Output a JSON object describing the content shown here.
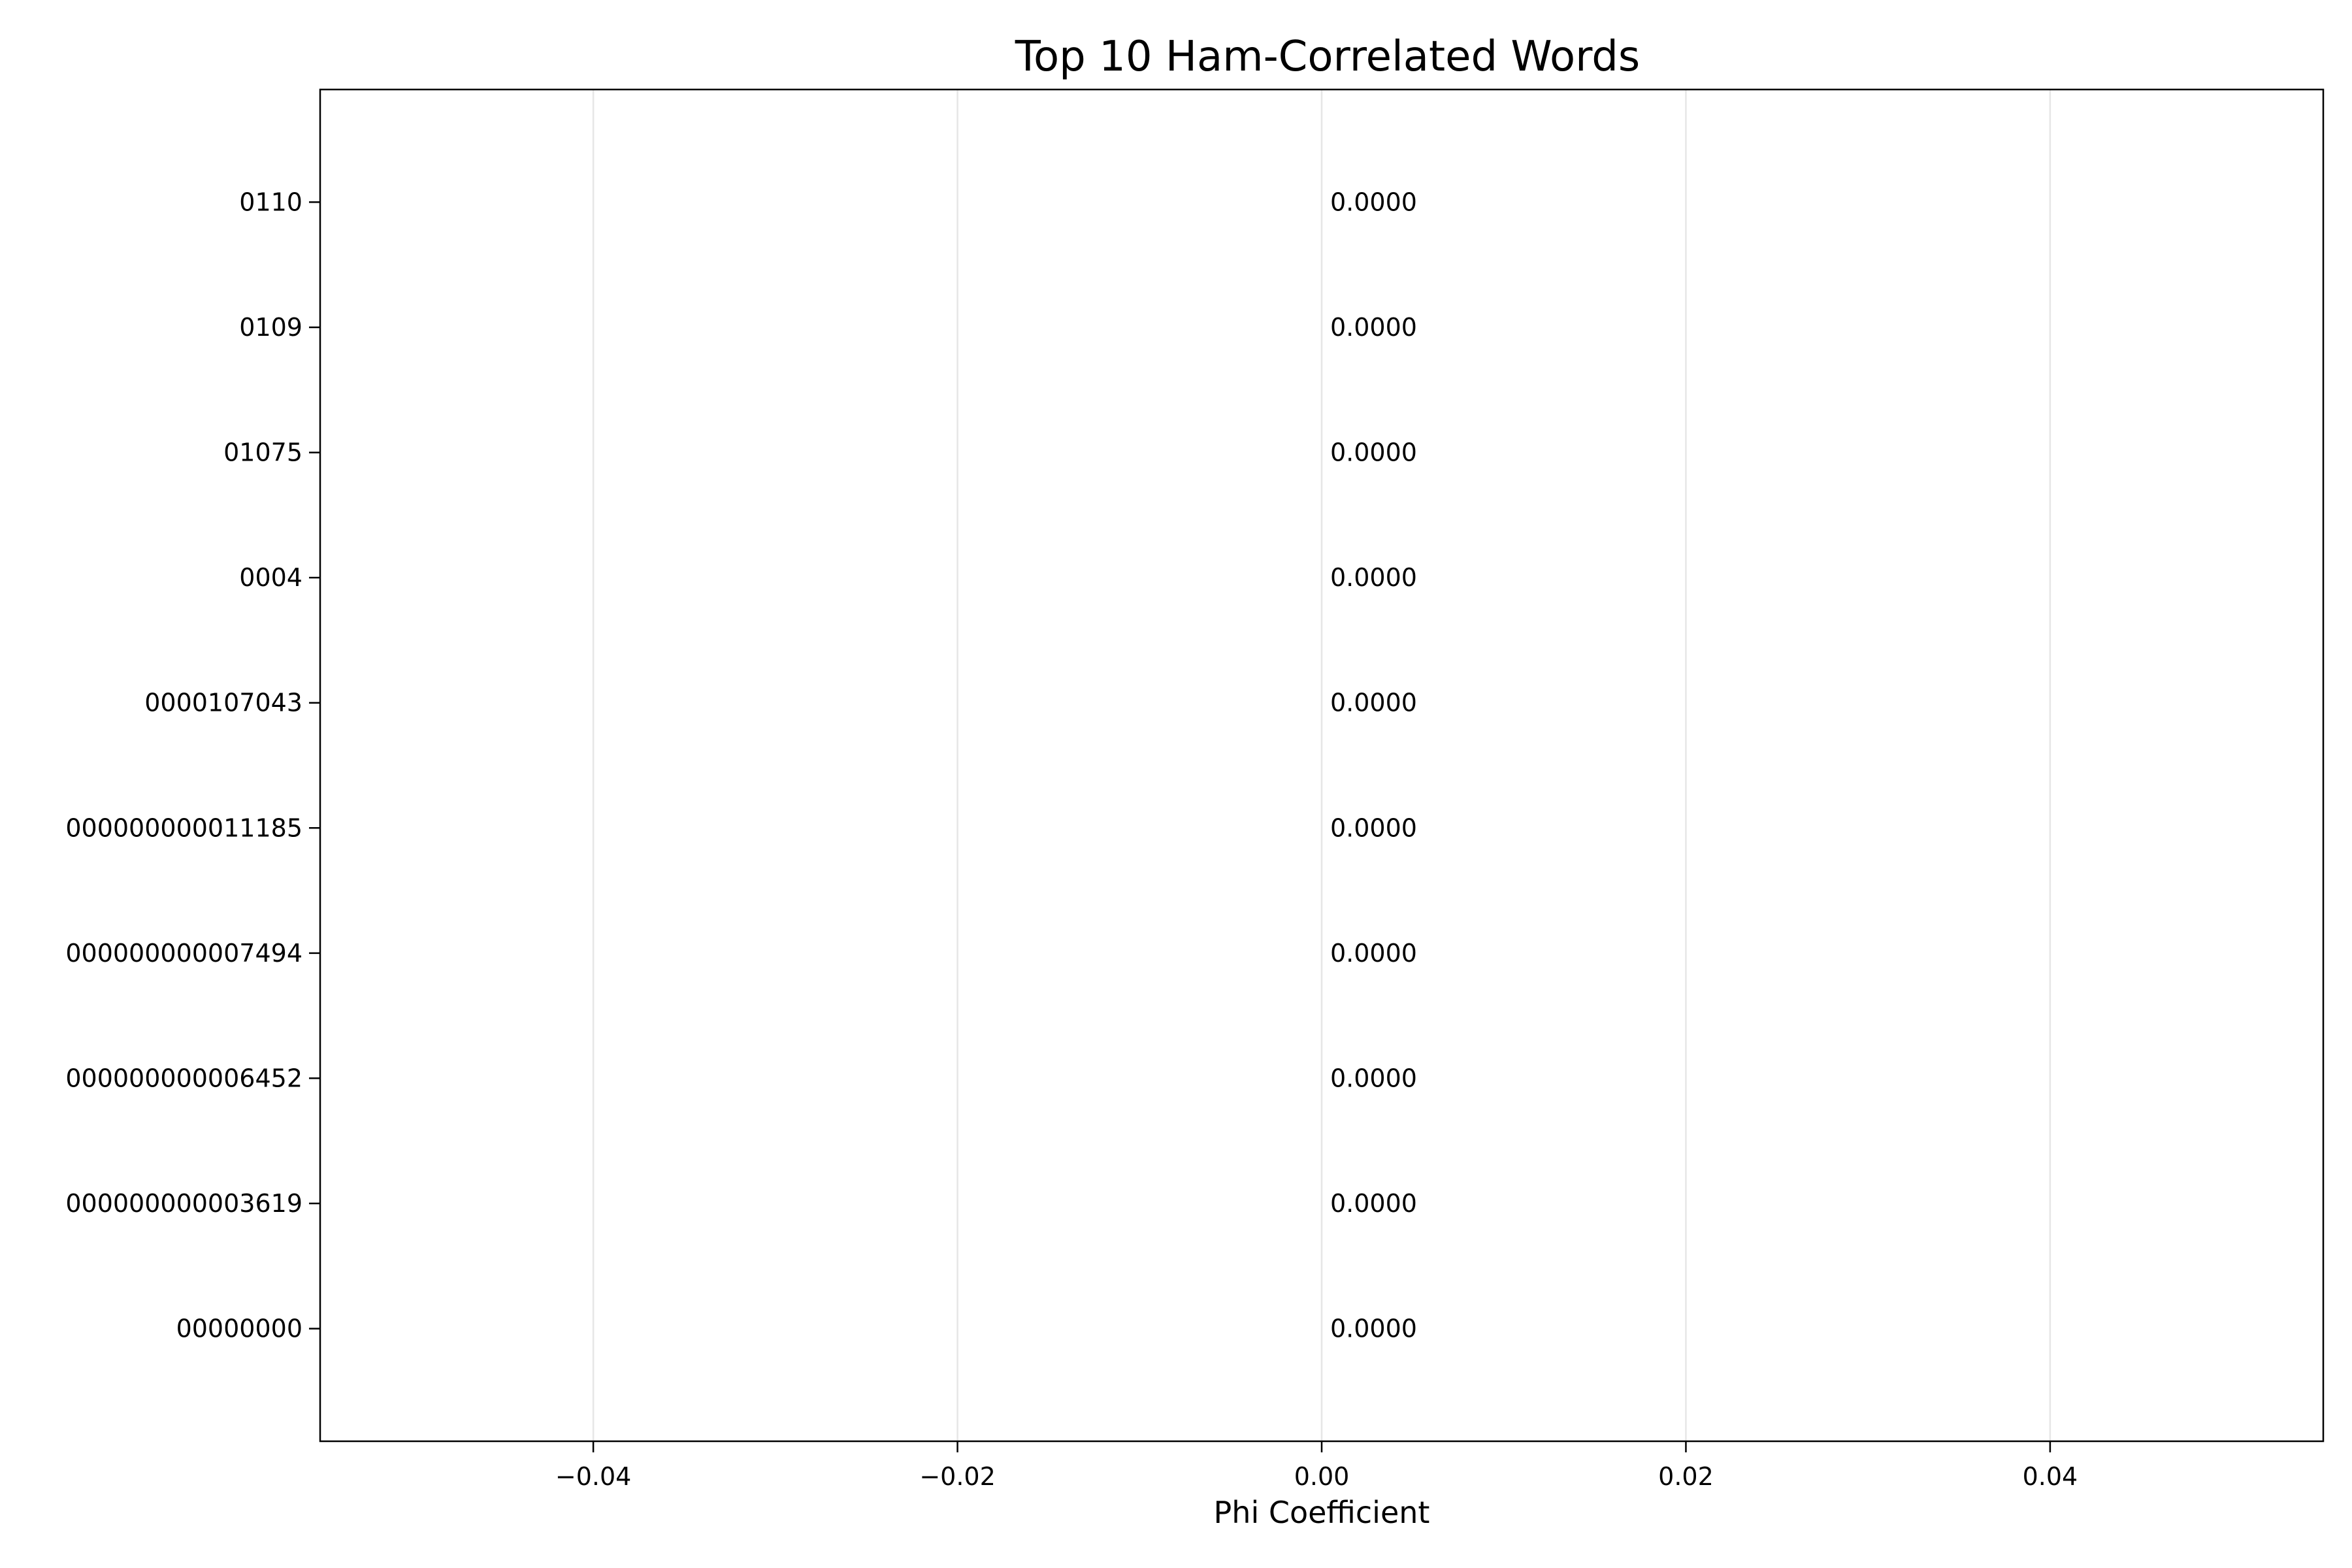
{
  "chart_data": {
    "type": "bar",
    "orientation": "horizontal",
    "title": "Top 10 Ham-Correlated Words",
    "xlabel": "Phi Coefficient",
    "ylabel": "",
    "categories": [
      "00000000",
      "000000000003619",
      "000000000006452",
      "000000000007494",
      "000000000011185",
      "0000107043",
      "0004",
      "01075",
      "0109",
      "0110"
    ],
    "values": [
      0,
      0,
      0,
      0,
      0,
      0,
      0,
      0,
      0,
      0
    ],
    "data_labels": [
      "0.0000",
      "0.0000",
      "0.0000",
      "0.0000",
      "0.0000",
      "0.0000",
      "0.0000",
      "0.0000",
      "0.0000",
      "0.0000"
    ],
    "xlim": [
      -0.055,
      0.055
    ],
    "xticks": [
      -0.04,
      -0.02,
      0.0,
      0.02,
      0.04
    ],
    "xtick_labels": [
      "−0.04",
      "−0.02",
      "0.00",
      "0.02",
      "0.04"
    ],
    "grid": "x",
    "legend": "none"
  },
  "colors": {
    "bar": "#2ca02c",
    "grid": "#e6e6e6",
    "axes": "#000000"
  }
}
